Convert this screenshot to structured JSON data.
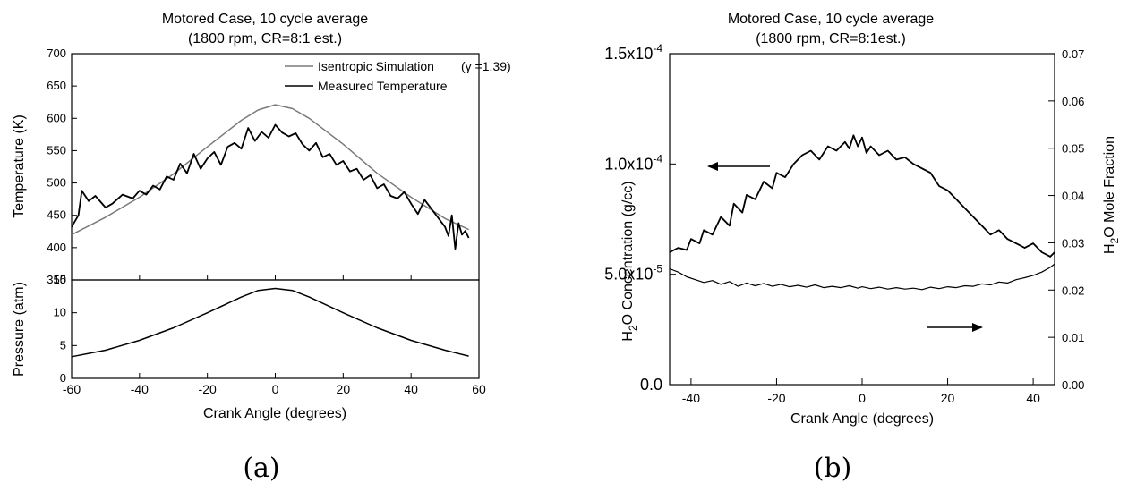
{
  "panel_a": {
    "title_line1": "Motored Case, 10 cycle average",
    "title_line2": "(1800 rpm, CR=8:1 est.)",
    "caption": "(a)",
    "top_ylabel": "Temperature (K)",
    "bottom_ylabel": "Pressure (atm)",
    "xlabel": "Crank Angle (degrees)",
    "legend_sim": "Isentropic Simulation",
    "legend_gamma": "(γ =1.39)",
    "legend_meas": "Measured Temperature"
  },
  "panel_b": {
    "title_line1": "Motored Case, 10 cycle average",
    "title_line2": "(1800 rpm, CR=8:1est.)",
    "caption": "(b)",
    "ylabel_left_1": "H",
    "ylabel_left_sub": "2",
    "ylabel_left_2": "O Concentration (g/cc)",
    "ylabel_right_1": "H",
    "ylabel_right_sub": "2",
    "ylabel_right_2": "O Mole Fraction",
    "xlabel": "Crank Angle (degrees)",
    "left_ticks": [
      {
        "v": 0.0,
        "text": "0.0",
        "exp": ""
      },
      {
        "v": 5e-05,
        "text": "5.0x10",
        "exp": "-5"
      },
      {
        "v": 0.0001,
        "text": "1.0x10",
        "exp": "-4"
      },
      {
        "v": 0.00015,
        "text": "1.5x10",
        "exp": "-4"
      }
    ]
  },
  "chart_data": [
    {
      "type": "line",
      "title": "Motored Case, 10 cycle average (1800 rpm, CR=8:1 est.)",
      "xlabel": "Crank Angle (degrees)",
      "ylabel": "Temperature (K)",
      "xlim": [
        -60,
        60
      ],
      "ylim": [
        350,
        700
      ],
      "xticks": [
        -60,
        -40,
        -20,
        0,
        20,
        40,
        60
      ],
      "yticks": [
        350,
        400,
        450,
        500,
        550,
        600,
        650,
        700
      ],
      "legend_position": "top-right",
      "series": [
        {
          "name": "Isentropic Simulation (γ =1.39)",
          "color": "#7a7a7a",
          "x": [
            -60,
            -50,
            -40,
            -30,
            -20,
            -10,
            -5,
            0,
            5,
            10,
            20,
            30,
            40,
            50,
            57
          ],
          "y": [
            420,
            447,
            478,
            514,
            556,
            597,
            613,
            621,
            615,
            600,
            560,
            515,
            478,
            445,
            428
          ]
        },
        {
          "name": "Measured Temperature",
          "color": "#000000",
          "x": [
            -60,
            -58,
            -57,
            -55,
            -53,
            -50,
            -48,
            -45,
            -42,
            -40,
            -38,
            -36,
            -34,
            -32,
            -30,
            -28,
            -26,
            -24,
            -22,
            -20,
            -18,
            -16,
            -14,
            -12,
            -10,
            -8,
            -6,
            -4,
            -2,
            0,
            2,
            4,
            6,
            8,
            10,
            12,
            14,
            16,
            18,
            20,
            22,
            24,
            26,
            28,
            30,
            32,
            34,
            36,
            38,
            40,
            42,
            44,
            46,
            48,
            50,
            51,
            52,
            53,
            54,
            55,
            56,
            57
          ],
          "y": [
            432,
            450,
            488,
            472,
            480,
            462,
            468,
            482,
            476,
            488,
            482,
            496,
            490,
            510,
            505,
            530,
            515,
            545,
            522,
            538,
            548,
            528,
            556,
            562,
            553,
            585,
            565,
            579,
            570,
            590,
            578,
            572,
            577,
            560,
            550,
            562,
            540,
            545,
            528,
            534,
            518,
            522,
            505,
            512,
            492,
            498,
            480,
            476,
            486,
            468,
            452,
            474,
            460,
            446,
            432,
            418,
            450,
            398,
            438,
            420,
            426,
            415
          ]
        }
      ]
    },
    {
      "type": "line",
      "xlabel": "Crank Angle (degrees)",
      "ylabel": "Pressure (atm)",
      "xlim": [
        -60,
        60
      ],
      "ylim": [
        0,
        15
      ],
      "xticks": [
        -60,
        -40,
        -20,
        0,
        20,
        40,
        60
      ],
      "yticks": [
        0,
        5,
        10,
        15
      ],
      "series": [
        {
          "color": "#000000",
          "x": [
            -60,
            -50,
            -40,
            -30,
            -20,
            -10,
            -5,
            0,
            5,
            10,
            20,
            30,
            40,
            50,
            57
          ],
          "y": [
            3.3,
            4.3,
            5.8,
            7.7,
            10.0,
            12.4,
            13.4,
            13.7,
            13.4,
            12.4,
            10.0,
            7.7,
            5.8,
            4.3,
            3.4
          ]
        }
      ]
    },
    {
      "type": "line",
      "title": "Motored Case, 10 cycle average (1800 rpm, CR=8:1est.)",
      "xlabel": "Crank Angle (degrees)",
      "ylabel_left": "H2O Concentration (g/cc)",
      "ylabel_right": "H2O Mole Fraction",
      "xlim": [
        -45,
        45
      ],
      "ylim_left": [
        0,
        0.00015
      ],
      "ylim_right": [
        0,
        0.07
      ],
      "xticks": [
        -40,
        -20,
        0,
        20,
        40
      ],
      "yticks_right": [
        0.0,
        0.01,
        0.02,
        0.03,
        0.04,
        0.05,
        0.06,
        0.07
      ],
      "annotations": [
        "arrow pointing left at concentration curve",
        "arrow pointing right at mole fraction curve"
      ],
      "series": [
        {
          "axis": "left",
          "color": "#000000",
          "x": [
            -45,
            -43,
            -41,
            -40,
            -38,
            -37,
            -35,
            -33,
            -31,
            -30,
            -28,
            -27,
            -25,
            -23,
            -21,
            -20,
            -18,
            -16,
            -14,
            -12,
            -10,
            -8,
            -6,
            -4,
            -3,
            -2,
            -1,
            0,
            1,
            2,
            4,
            6,
            8,
            10,
            12,
            14,
            16,
            18,
            20,
            22,
            24,
            26,
            28,
            30,
            32,
            34,
            36,
            38,
            40,
            42,
            44,
            45
          ],
          "y": [
            6e-05,
            6.2e-05,
            6.1e-05,
            6.6e-05,
            6.4e-05,
            7e-05,
            6.8e-05,
            7.6e-05,
            7.2e-05,
            8.2e-05,
            7.8e-05,
            8.6e-05,
            8.4e-05,
            9.2e-05,
            8.9e-05,
            9.6e-05,
            9.4e-05,
            0.0001,
            0.000104,
            0.000106,
            0.000102,
            0.000108,
            0.000106,
            0.00011,
            0.000107,
            0.000113,
            0.000108,
            0.000112,
            0.000105,
            0.000108,
            0.000104,
            0.000106,
            0.000102,
            0.000103,
            0.0001,
            9.8e-05,
            9.6e-05,
            9e-05,
            8.8e-05,
            8.4e-05,
            8e-05,
            7.6e-05,
            7.2e-05,
            6.8e-05,
            7e-05,
            6.6e-05,
            6.4e-05,
            6.2e-05,
            6.4e-05,
            6e-05,
            5.8e-05,
            6e-05
          ]
        },
        {
          "axis": "right",
          "color": "#000000",
          "x": [
            -45,
            -43,
            -41,
            -39,
            -37,
            -35,
            -33,
            -31,
            -29,
            -27,
            -25,
            -23,
            -21,
            -19,
            -17,
            -15,
            -13,
            -11,
            -9,
            -7,
            -5,
            -3,
            -1,
            0,
            2,
            4,
            6,
            8,
            10,
            12,
            14,
            16,
            18,
            20,
            22,
            24,
            26,
            28,
            30,
            32,
            34,
            36,
            38,
            40,
            42,
            44,
            45
          ],
          "y": [
            0.0245,
            0.0238,
            0.0228,
            0.0222,
            0.0216,
            0.022,
            0.0212,
            0.0218,
            0.0208,
            0.0215,
            0.0209,
            0.0214,
            0.0208,
            0.0212,
            0.0207,
            0.021,
            0.0206,
            0.0211,
            0.0205,
            0.0208,
            0.0205,
            0.0209,
            0.0204,
            0.0207,
            0.0203,
            0.0206,
            0.0202,
            0.0205,
            0.0202,
            0.0204,
            0.0201,
            0.0206,
            0.0203,
            0.0207,
            0.0205,
            0.0209,
            0.0208,
            0.0213,
            0.0211,
            0.0217,
            0.0215,
            0.0222,
            0.0226,
            0.0231,
            0.0238,
            0.0248,
            0.0255
          ]
        }
      ]
    }
  ]
}
